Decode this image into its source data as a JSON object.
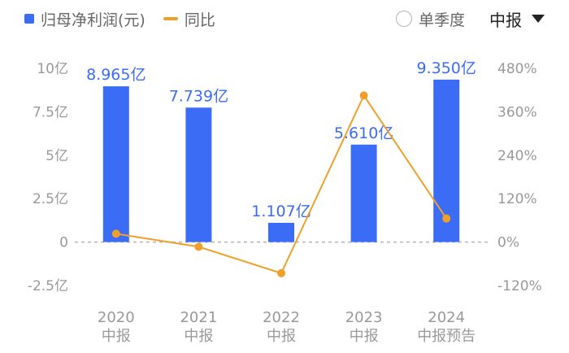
{
  "legend": {
    "bar_label": "归母净利润(元)",
    "line_label": "同比"
  },
  "controls": {
    "season_label": "单季度",
    "period_label": "中报"
  },
  "colors": {
    "bar": "#3b6cf5",
    "line": "#f0a02a",
    "label": "#3b6cf5",
    "axis_text": "#999999",
    "zero_line": "#b5b5b5"
  },
  "chart_data": {
    "type": "bar",
    "categories": [
      [
        "2020",
        "中报"
      ],
      [
        "2021",
        "中报"
      ],
      [
        "2022",
        "中报"
      ],
      [
        "2023",
        "中报"
      ],
      [
        "2024",
        "中报预告"
      ]
    ],
    "series": [
      {
        "name": "归母净利润(元)",
        "type": "bar",
        "axis": "left",
        "values": [
          8.965,
          7.739,
          1.107,
          5.61,
          9.35
        ],
        "data_labels": [
          "8.965亿",
          "7.739亿",
          "1.107亿",
          "5.610亿",
          "9.350亿"
        ]
      },
      {
        "name": "同比",
        "type": "line",
        "axis": "right",
        "values": [
          23,
          -13,
          -86,
          405,
          65
        ]
      }
    ],
    "y_left": {
      "ylim": [
        -2.5,
        10
      ],
      "ticks": [
        10,
        7.5,
        5,
        2.5,
        0,
        -2.5
      ],
      "tick_labels": [
        "10亿",
        "7.5亿",
        "5亿",
        "2.5亿",
        "0",
        "-2.5亿"
      ]
    },
    "y_right": {
      "ylim": [
        -120,
        480
      ],
      "ticks": [
        480,
        360,
        240,
        120,
        0,
        -120
      ],
      "tick_labels": [
        "480%",
        "360%",
        "240%",
        "120%",
        "0%",
        "-120%"
      ]
    },
    "zero_line": "dashed",
    "grid": false,
    "legend": "top-left"
  }
}
